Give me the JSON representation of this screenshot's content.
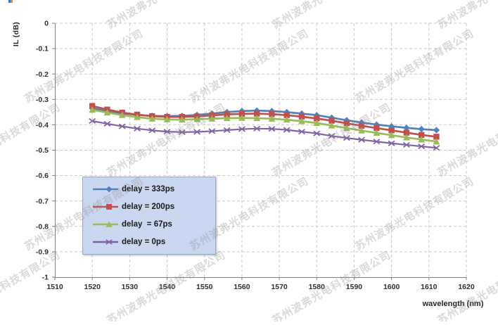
{
  "watermark": {
    "text": "苏州波弗光电科技有限公司"
  },
  "decor": {
    "corner_left_color": "#4472c4",
    "corner_right_color": "#ed7d31"
  },
  "chart_data": {
    "type": "line",
    "title": "",
    "xlabel": "wavelength (nm)",
    "ylabel": "IL (dB)",
    "xlim": [
      1510,
      1620
    ],
    "ylim": [
      -1,
      0
    ],
    "xticks": [
      1510,
      1520,
      1530,
      1540,
      1550,
      1560,
      1570,
      1580,
      1590,
      1600,
      1610,
      1620
    ],
    "yticks": [
      0,
      -0.1,
      -0.2,
      -0.3,
      -0.4,
      -0.5,
      -0.6,
      -0.7,
      -0.8,
      -0.9,
      -1
    ],
    "ytick_labels": [
      "0",
      "-0.1",
      "-0.2",
      "-0.3",
      "-0.4",
      "-0.5",
      "-0.6",
      "-0.7",
      "-0.8",
      "-0.9",
      "-1"
    ],
    "grid": "dashed both axes",
    "grid_color": "#c9c9c9",
    "axis_color": "#808080",
    "tick_label_color": "#303030",
    "legend_position": "inside-left",
    "legend_bg": "#c9d7f0",
    "x": [
      1520,
      1524,
      1528,
      1532,
      1536,
      1540,
      1544,
      1548,
      1552,
      1556,
      1560,
      1564,
      1568,
      1572,
      1576,
      1580,
      1584,
      1588,
      1592,
      1596,
      1600,
      1604,
      1608,
      1612
    ],
    "series": [
      {
        "name": "delay = 333ps",
        "color": "#4F81BD",
        "marker": "diamond",
        "values": [
          -0.335,
          -0.346,
          -0.355,
          -0.361,
          -0.365,
          -0.366,
          -0.365,
          -0.361,
          -0.356,
          -0.35,
          -0.346,
          -0.344,
          -0.346,
          -0.35,
          -0.356,
          -0.362,
          -0.372,
          -0.382,
          -0.391,
          -0.399,
          -0.406,
          -0.412,
          -0.417,
          -0.421
        ]
      },
      {
        "name": "delay = 200ps",
        "color": "#C0504D",
        "marker": "square",
        "values": [
          -0.326,
          -0.34,
          -0.352,
          -0.36,
          -0.366,
          -0.369,
          -0.369,
          -0.367,
          -0.363,
          -0.359,
          -0.357,
          -0.356,
          -0.358,
          -0.362,
          -0.368,
          -0.375,
          -0.384,
          -0.394,
          -0.404,
          -0.413,
          -0.422,
          -0.431,
          -0.44,
          -0.447
        ]
      },
      {
        "name": "delay  = 67ps",
        "color": "#9BBB59",
        "marker": "triangle",
        "values": [
          -0.341,
          -0.352,
          -0.362,
          -0.37,
          -0.376,
          -0.379,
          -0.38,
          -0.378,
          -0.376,
          -0.374,
          -0.373,
          -0.374,
          -0.376,
          -0.38,
          -0.386,
          -0.393,
          -0.403,
          -0.413,
          -0.423,
          -0.432,
          -0.441,
          -0.45,
          -0.458,
          -0.466
        ]
      },
      {
        "name": "delay = 0ps",
        "color": "#8064A2",
        "marker": "x",
        "values": [
          -0.385,
          -0.396,
          -0.406,
          -0.415,
          -0.422,
          -0.427,
          -0.429,
          -0.428,
          -0.425,
          -0.421,
          -0.417,
          -0.415,
          -0.416,
          -0.42,
          -0.427,
          -0.434,
          -0.444,
          -0.452,
          -0.459,
          -0.466,
          -0.473,
          -0.479,
          -0.485,
          -0.491
        ]
      }
    ]
  }
}
